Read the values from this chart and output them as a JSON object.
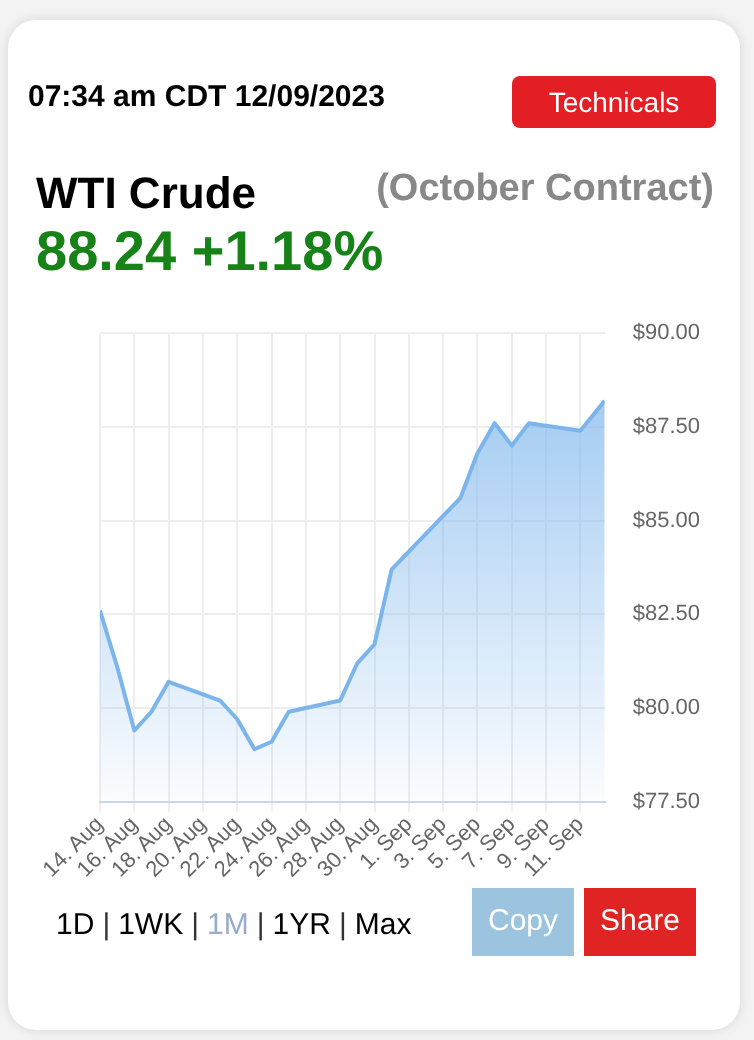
{
  "chart_data": {
    "type": "area",
    "title": "WTI Crude",
    "subtitle": "(October Contract)",
    "annotations": [
      "07:34 am CDT 12/09/2023",
      "88.24 +1.18%",
      "Technicals",
      "1D",
      "|",
      "1WK",
      "|",
      "1M",
      "|",
      "1YR",
      "|",
      "Max",
      "Copy",
      "Share"
    ],
    "x": [
      "2023-08-14",
      "2023-08-15",
      "2023-08-16",
      "2023-08-17",
      "2023-08-18",
      "2023-08-21",
      "2023-08-22",
      "2023-08-23",
      "2023-08-24",
      "2023-08-25",
      "2023-08-28",
      "2023-08-29",
      "2023-08-30",
      "2023-08-31",
      "2023-09-04",
      "2023-09-05",
      "2023-09-06",
      "2023-09-07",
      "2023-09-08",
      "2023-09-11",
      "2023-09-12T10:00"
    ],
    "series": [
      {
        "color": "#7cb5ec",
        "values": [
          82.6,
          81.1,
          79.4,
          79.9,
          80.7,
          80.2,
          79.7,
          78.9,
          79.1,
          79.9,
          80.2,
          81.2,
          81.7,
          83.7,
          85.6,
          86.8,
          87.6,
          87.0,
          87.6,
          87.4,
          88.2
        ]
      }
    ],
    "xlim": [
      "2023-08-14",
      "2023-09-12T10:00"
    ],
    "xticks": [
      {
        "value": "2023-08-14",
        "label": "14. Aug"
      },
      {
        "value": "2023-08-16",
        "label": "16. Aug"
      },
      {
        "value": "2023-08-18",
        "label": "18. Aug"
      },
      {
        "value": "2023-08-20",
        "label": "20. Aug"
      },
      {
        "value": "2023-08-22",
        "label": "22. Aug"
      },
      {
        "value": "2023-08-24",
        "label": "24. Aug"
      },
      {
        "value": "2023-08-26",
        "label": "26. Aug"
      },
      {
        "value": "2023-08-28",
        "label": "28. Aug"
      },
      {
        "value": "2023-08-30",
        "label": "30. Aug"
      },
      {
        "value": "2023-09-01",
        "label": "1. Sep"
      },
      {
        "value": "2023-09-03",
        "label": "3. Sep"
      },
      {
        "value": "2023-09-05",
        "label": "5. Sep"
      },
      {
        "value": "2023-09-07",
        "label": "7. Sep"
      },
      {
        "value": "2023-09-09",
        "label": "9. Sep"
      },
      {
        "value": "2023-09-11",
        "label": "11. Sep"
      }
    ],
    "ylim": [
      77.5,
      90
    ],
    "yticks": [
      {
        "value": 77.5,
        "label": "$77.50"
      },
      {
        "value": 80,
        "label": "$80.00"
      },
      {
        "value": 82.5,
        "label": "$82.50"
      },
      {
        "value": 85,
        "label": "$85.00"
      },
      {
        "value": 87.5,
        "label": "$87.50"
      },
      {
        "value": 90,
        "label": "$90.00"
      }
    ],
    "grid": true,
    "legend": false,
    "marker": "none",
    "line_style": "solid"
  }
}
